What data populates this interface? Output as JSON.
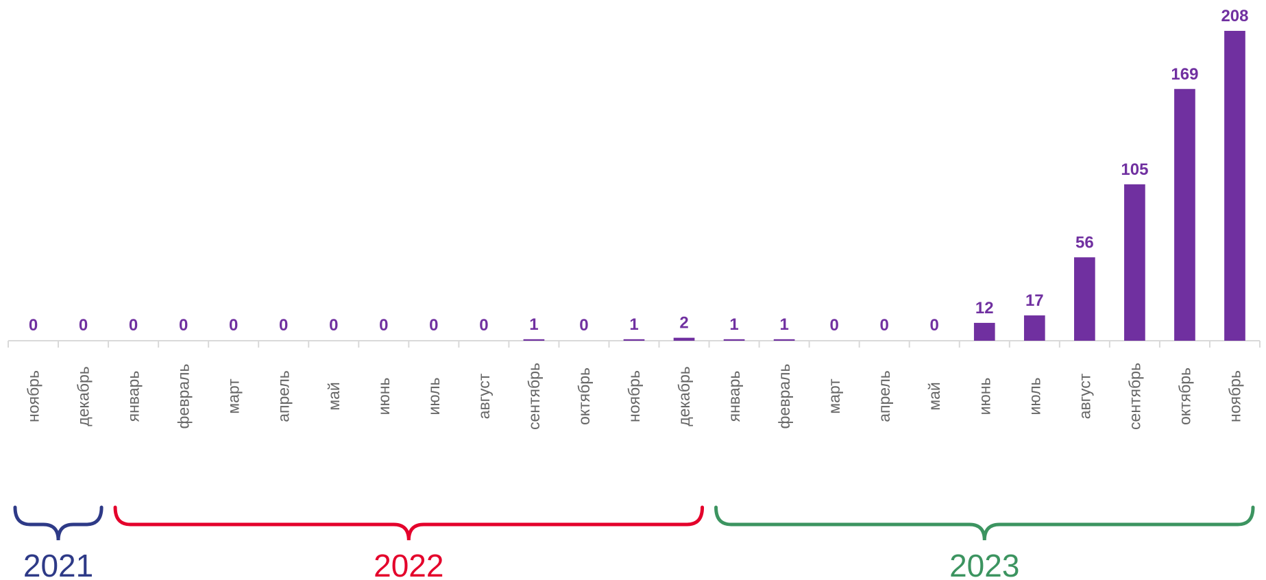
{
  "chart_data": {
    "type": "bar",
    "categories": [
      "ноябрь",
      "декабрь",
      "январь",
      "февраль",
      "март",
      "апрель",
      "май",
      "июнь",
      "июль",
      "август",
      "сентябрь",
      "октябрь",
      "ноябрь",
      "декабрь",
      "январь",
      "февраль",
      "март",
      "апрель",
      "май",
      "июнь",
      "июль",
      "август",
      "сентябрь",
      "октябрь",
      "ноябрь"
    ],
    "values": [
      0,
      0,
      0,
      0,
      0,
      0,
      0,
      0,
      0,
      0,
      1,
      0,
      1,
      2,
      1,
      1,
      0,
      0,
      0,
      12,
      17,
      56,
      105,
      169,
      208
    ],
    "data_labels": [
      "0",
      "0",
      "0",
      "0",
      "0",
      "0",
      "0",
      "0",
      "0",
      "0",
      "1",
      "0",
      "1",
      "2",
      "1",
      "1",
      "0",
      "0",
      "0",
      "12",
      "17",
      "56",
      "105",
      "169",
      "208"
    ],
    "ylim": [
      0,
      208
    ],
    "bar_color": "#7030A0",
    "axis_color": "#d9d9d9",
    "tick_label_color": "#666666",
    "grid": false,
    "year_groups": [
      {
        "label": "2021",
        "start_index": 0,
        "end_index": 1,
        "color": "#2E3A87"
      },
      {
        "label": "2022",
        "start_index": 2,
        "end_index": 13,
        "color": "#E4002B"
      },
      {
        "label": "2023",
        "start_index": 14,
        "end_index": 24,
        "color": "#3C9460"
      }
    ]
  }
}
